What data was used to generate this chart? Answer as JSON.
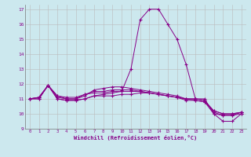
{
  "bg_color": "#cce8ee",
  "line_color": "#880088",
  "grid_color": "#bbbbbb",
  "xlabel": "Windchill (Refroidissement éolien,°C)",
  "xlabel_color": "#880088",
  "tick_color": "#880088",
  "xlim": [
    -0.5,
    23.5
  ],
  "ylim": [
    9.0,
    17.3
  ],
  "yticks": [
    9,
    10,
    11,
    12,
    13,
    14,
    15,
    16,
    17
  ],
  "xticks": [
    0,
    1,
    2,
    3,
    4,
    5,
    6,
    7,
    8,
    9,
    10,
    11,
    12,
    13,
    14,
    15,
    16,
    17,
    18,
    19,
    20,
    21,
    22,
    23
  ],
  "lines": [
    [
      11.0,
      11.0,
      11.9,
      11.0,
      10.9,
      10.9,
      11.0,
      11.2,
      11.2,
      11.2,
      11.3,
      11.3,
      11.4,
      11.4,
      11.3,
      11.2,
      11.1,
      10.9,
      10.9,
      10.8,
      10.0,
      9.9,
      9.9,
      10.0
    ],
    [
      11.0,
      11.1,
      11.9,
      11.2,
      11.1,
      11.1,
      11.3,
      11.4,
      11.4,
      11.5,
      11.5,
      11.5,
      11.5,
      11.4,
      11.3,
      11.2,
      11.1,
      11.0,
      10.9,
      10.8,
      10.2,
      10.0,
      10.0,
      10.1
    ],
    [
      11.0,
      11.1,
      11.9,
      11.2,
      11.0,
      11.0,
      11.3,
      11.5,
      11.5,
      11.6,
      11.6,
      11.6,
      11.5,
      11.4,
      11.3,
      11.2,
      11.1,
      11.0,
      11.0,
      10.9,
      10.2,
      10.0,
      10.0,
      10.1
    ],
    [
      11.0,
      11.1,
      11.9,
      11.1,
      11.0,
      11.0,
      11.2,
      11.6,
      11.7,
      11.8,
      11.8,
      11.7,
      11.6,
      11.5,
      11.4,
      11.3,
      11.2,
      11.0,
      11.0,
      10.9,
      10.1,
      9.9,
      9.9,
      10.1
    ],
    [
      11.0,
      11.0,
      11.9,
      11.0,
      10.9,
      10.9,
      11.0,
      11.2,
      11.3,
      11.4,
      11.5,
      13.0,
      16.3,
      17.0,
      17.0,
      16.0,
      15.0,
      13.3,
      11.0,
      11.0,
      10.0,
      9.5,
      9.5,
      10.0
    ]
  ]
}
